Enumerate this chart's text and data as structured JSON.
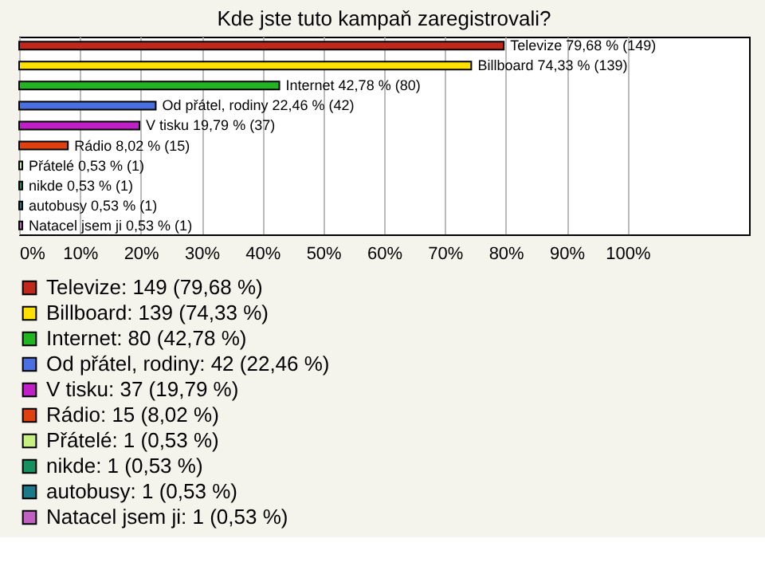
{
  "chart_data": {
    "type": "bar",
    "orientation": "horizontal",
    "title": "Kde jste tuto kampaň zaregistrovali?",
    "categories": [
      null,
      null,
      null,
      null,
      null,
      null,
      null,
      null,
      null,
      null
    ],
    "series": [
      {
        "name": "Televize: 149 (79,68 %)",
        "color": "#c0281c",
        "values": [
          79.68,
          null,
          null,
          null,
          null,
          null,
          null,
          null,
          null,
          null
        ],
        "value_labels": [
          "Televize 79,68 % (149)",
          null,
          null,
          null,
          null,
          null,
          null,
          null,
          null,
          null
        ]
      },
      {
        "name": "Billboard: 139 (74,33 %)",
        "color": "#ffe000",
        "values": [
          null,
          74.33,
          null,
          null,
          null,
          null,
          null,
          null,
          null,
          null
        ],
        "value_labels": [
          null,
          "Billboard 74,33 % (139)",
          null,
          null,
          null,
          null,
          null,
          null,
          null,
          null
        ]
      },
      {
        "name": "Internet: 80 (42,78 %)",
        "color": "#22b522",
        "values": [
          null,
          null,
          42.78,
          null,
          null,
          null,
          null,
          null,
          null,
          null
        ],
        "value_labels": [
          null,
          null,
          "Internet 42,78 % (80)",
          null,
          null,
          null,
          null,
          null,
          null,
          null
        ]
      },
      {
        "name": "Od přátel, rodiny: 42 (22,46 %)",
        "color": "#4a6fe0",
        "values": [
          null,
          null,
          null,
          22.46,
          null,
          null,
          null,
          null,
          null,
          null
        ],
        "value_labels": [
          null,
          null,
          null,
          "Od přátel, rodiny 22,46 % (42)",
          null,
          null,
          null,
          null,
          null,
          null
        ]
      },
      {
        "name": "V tisku: 37 (19,79 %)",
        "color": "#c020c8",
        "values": [
          null,
          null,
          null,
          null,
          19.79,
          null,
          null,
          null,
          null,
          null
        ],
        "value_labels": [
          null,
          null,
          null,
          null,
          "V tisku 19,79 % (37)",
          null,
          null,
          null,
          null,
          null
        ]
      },
      {
        "name": "Rádio: 15 (8,02 %)",
        "color": "#e04010",
        "values": [
          null,
          null,
          null,
          null,
          null,
          8.02,
          null,
          null,
          null,
          null
        ],
        "value_labels": [
          null,
          null,
          null,
          null,
          null,
          "Rádio 8,02 % (15)",
          null,
          null,
          null,
          null
        ]
      },
      {
        "name": "Přátelé: 1 (0,53 %)",
        "color": "#c8f080",
        "values": [
          null,
          null,
          null,
          null,
          null,
          null,
          0.53,
          null,
          null,
          null
        ],
        "value_labels": [
          null,
          null,
          null,
          null,
          null,
          null,
          "Přátelé 0,53 % (1)",
          null,
          null,
          null
        ]
      },
      {
        "name": "nikde: 1 (0,53 %)",
        "color": "#169060",
        "values": [
          null,
          null,
          null,
          null,
          null,
          null,
          null,
          0.53,
          null,
          null
        ],
        "value_labels": [
          null,
          null,
          null,
          null,
          null,
          null,
          null,
          "nikde 0,53 % (1)",
          null,
          null
        ]
      },
      {
        "name": "autobusy: 1 (0,53 %)",
        "color": "#1a7a8a",
        "values": [
          null,
          null,
          null,
          null,
          null,
          null,
          null,
          null,
          0.53,
          null
        ],
        "value_labels": [
          null,
          null,
          null,
          null,
          null,
          null,
          null,
          null,
          "autobusy 0,53 % (1)",
          null
        ]
      },
      {
        "name": "Natacel jsem ji: 1 (0,53 %)",
        "color": "#c060c0",
        "values": [
          null,
          null,
          null,
          null,
          null,
          null,
          null,
          null,
          null,
          0.53
        ],
        "value_labels": [
          null,
          null,
          null,
          null,
          null,
          null,
          null,
          null,
          null,
          "Natacel jsem ji 0,53 % (1)"
        ]
      }
    ],
    "xlim": [
      0,
      120
    ],
    "xticks": [
      {
        "value": 0,
        "label": "0%"
      },
      {
        "value": 10,
        "label": "10%"
      },
      {
        "value": 20,
        "label": "20%"
      },
      {
        "value": 30,
        "label": "30%"
      },
      {
        "value": 40,
        "label": "40%"
      },
      {
        "value": 50,
        "label": "50%"
      },
      {
        "value": 60,
        "label": "60%"
      },
      {
        "value": 70,
        "label": "70%"
      },
      {
        "value": 80,
        "label": "80%"
      },
      {
        "value": 90,
        "label": "90%"
      },
      {
        "value": 100,
        "label": "100%"
      }
    ],
    "grid": "x",
    "tick_labels": "x",
    "legend": "bottom"
  }
}
